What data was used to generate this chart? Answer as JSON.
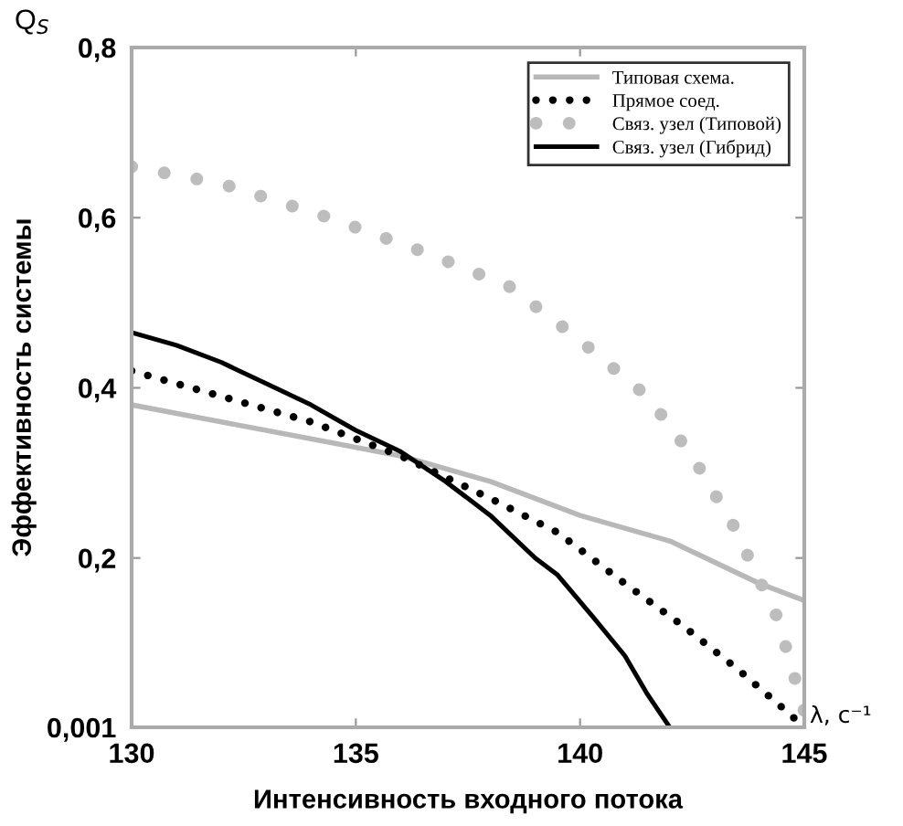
{
  "chart_data": {
    "type": "line",
    "xlabel": "Интенсивность входного потока",
    "ylabel": "Эффективность системы",
    "annotations": [
      "Q$_{S}$",
      "λ, с⁻¹"
    ],
    "xlim": [
      130,
      145
    ],
    "xticks": [
      130,
      135,
      140,
      145
    ],
    "ylim": [
      0.001,
      0.8
    ],
    "yticks": [
      {
        "value": 0.001,
        "label": "0,001"
      },
      {
        "value": 0.2,
        "label": "0,2"
      },
      {
        "value": 0.4,
        "label": "0,4"
      },
      {
        "value": 0.6,
        "label": "0,6"
      },
      {
        "value": 0.8,
        "label": "0,8"
      }
    ],
    "grid": false,
    "legend": "top right",
    "series": [
      {
        "name": "Типовая схема.",
        "color": "#b8b8b8",
        "line_style": "solid",
        "x": [
          130,
          132,
          134,
          136,
          138,
          140,
          142,
          144,
          145
        ],
        "values": [
          0.38,
          0.36,
          0.34,
          0.32,
          0.29,
          0.25,
          0.22,
          0.17,
          0.15
        ]
      },
      {
        "name": "Прямое соед.",
        "color": "#000000",
        "line_style": "dotted",
        "x": [
          130,
          132,
          134,
          136,
          138,
          139.5,
          141,
          142.3,
          143.5,
          144.6,
          145
        ],
        "values": [
          0.42,
          0.39,
          0.36,
          0.32,
          0.27,
          0.23,
          0.17,
          0.12,
          0.07,
          0.02,
          0.001
        ]
      },
      {
        "name": "Связ. узел (Типовой)",
        "color": "#bdbdbd",
        "line_style": "dotted",
        "x": [
          130,
          132,
          134.4,
          136.5,
          138.4,
          139.9,
          141.5,
          142.5,
          143.4,
          144.4,
          145
        ],
        "values": [
          0.66,
          0.64,
          0.6,
          0.56,
          0.52,
          0.46,
          0.39,
          0.32,
          0.24,
          0.13,
          0.02
        ]
      },
      {
        "name": "Связ. узел (Гибрид)",
        "color": "#000000",
        "line_style": "solid",
        "x": [
          130,
          131,
          132,
          133,
          134,
          135,
          136,
          137,
          138,
          139,
          139.5,
          140.3,
          141,
          141.5,
          142
        ],
        "values": [
          0.465,
          0.45,
          0.43,
          0.405,
          0.38,
          0.35,
          0.325,
          0.29,
          0.25,
          0.2,
          0.18,
          0.13,
          0.085,
          0.04,
          0.001
        ]
      }
    ]
  }
}
